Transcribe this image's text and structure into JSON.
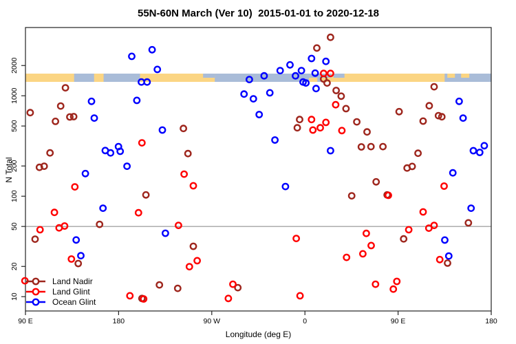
{
  "chart_data": {
    "type": "scatter",
    "title": "55N-60N March (Ver 10)  2015-01-01 to 2020-12-18",
    "xlabel": "Longitude (deg E)",
    "ylabel": "N Total",
    "x_axis": {
      "note": "longitude axis starting at 90E wrapping eastward to 180, axis units deg 90..540",
      "range": [
        90,
        540
      ],
      "ticks": [
        {
          "value": 90,
          "label": "90 E"
        },
        {
          "value": 180,
          "label": "180"
        },
        {
          "value": 270,
          "label": "90 W"
        },
        {
          "value": 360,
          "label": "0"
        },
        {
          "value": 450,
          "label": "90 E"
        },
        {
          "value": 540,
          "label": "180"
        }
      ]
    },
    "y_axis": {
      "scale": "log",
      "range": [
        8.5,
        4600
      ],
      "ticks": [
        {
          "value": 10,
          "label": "10"
        },
        {
          "value": 20,
          "label": "20"
        },
        {
          "value": 50,
          "label": "50"
        },
        {
          "value": 100,
          "label": "100"
        },
        {
          "value": 200,
          "label": "200"
        },
        {
          "value": 500,
          "label": "500"
        },
        {
          "value": 1000,
          "label": "1000"
        },
        {
          "value": 2000,
          "label": "2000"
        }
      ]
    },
    "reference_line": {
      "y": 50,
      "color": "#808080"
    },
    "map_band": {
      "description": "55N-60N latitude strip map drawn across plot near N=1700",
      "ocean_color": "#A9BCD8",
      "land_color": "#FBD583",
      "extent": [
        90,
        540
      ],
      "land_segments": [
        {
          "from": 90,
          "to": 137
        },
        {
          "from": 156.3,
          "to": 165.5
        },
        {
          "from": 200.7,
          "to": 272.9
        },
        {
          "from": 385.6,
          "to": 495.0
        }
      ],
      "patches": [
        {
          "from": 261.6,
          "to": 272.9,
          "color": "ocean",
          "half": "top"
        },
        {
          "from": 364.0,
          "to": 372.0,
          "color": "land",
          "half": "bottom"
        },
        {
          "from": 376.0,
          "to": 385.6,
          "color": "land",
          "half": "bottom"
        },
        {
          "from": 387.6,
          "to": 398.2,
          "color": "ocean",
          "half": "top"
        },
        {
          "from": 497.6,
          "to": 504.9,
          "color": "land",
          "half": "top"
        },
        {
          "from": 510.9,
          "to": 518.8,
          "color": "land",
          "half": "top"
        }
      ]
    },
    "legend": {
      "position": "bottom-left"
    },
    "series": [
      {
        "name": "Land Nadir",
        "color": "#9E261D",
        "points": [
          [
            128.6,
            1200
          ],
          [
            94.6,
            680
          ],
          [
            124,
            790
          ],
          [
            132.9,
            615
          ],
          [
            136.6,
            620
          ],
          [
            119,
            556
          ],
          [
            113.7,
            270
          ],
          [
            103.5,
            194
          ],
          [
            108.1,
            199
          ],
          [
            99.3,
            37.4
          ],
          [
            161.6,
            52.5
          ],
          [
            141,
            21.4
          ],
          [
            242.6,
            473
          ],
          [
            247,
            266
          ],
          [
            206.4,
            103
          ],
          [
            252.2,
            31.7
          ],
          [
            219.4,
            13.1
          ],
          [
            237.1,
            12.1
          ],
          [
            202.5,
            9.6
          ],
          [
            295.2,
            12.3
          ],
          [
            384.7,
            3820
          ],
          [
            371.5,
            2990
          ],
          [
            381.4,
            1340
          ],
          [
            378.1,
            1470
          ],
          [
            390.2,
            1130
          ],
          [
            395,
            990
          ],
          [
            399.7,
            745
          ],
          [
            354.9,
            580
          ],
          [
            352.6,
            480
          ],
          [
            410.1,
            550
          ],
          [
            420,
            437
          ],
          [
            414.5,
            310
          ],
          [
            423.8,
            312
          ],
          [
            435.4,
            312
          ],
          [
            428.8,
            139
          ],
          [
            405.2,
            101
          ],
          [
            439.4,
            103
          ],
          [
            484.8,
            1230
          ],
          [
            480.1,
            795
          ],
          [
            451,
            695
          ],
          [
            489,
            634
          ],
          [
            492.3,
            618
          ],
          [
            474.2,
            560
          ],
          [
            517.9,
            54.3
          ],
          [
            455.4,
            37.6
          ],
          [
            469.3,
            268
          ],
          [
            458.7,
            191
          ],
          [
            463.6,
            198
          ],
          [
            497.8,
            21.6
          ]
        ]
      },
      {
        "name": "Land Glint",
        "color": "#FF0000",
        "points": [
          [
            202.5,
            340
          ],
          [
            137.7,
            124
          ],
          [
            118,
            69
          ],
          [
            199.2,
            68.5
          ],
          [
            122.5,
            48.4
          ],
          [
            127.8,
            50.5
          ],
          [
            104.1,
            46.4
          ],
          [
            134.4,
            23.7
          ],
          [
            190.9,
            10.2
          ],
          [
            204.2,
            9.5
          ],
          [
            89.5,
            14.4
          ],
          [
            243.3,
            166
          ],
          [
            252.2,
            127
          ],
          [
            237.8,
            51.2
          ],
          [
            248.4,
            19.9
          ],
          [
            255.9,
            22.8
          ],
          [
            286,
            9.6
          ],
          [
            290.4,
            13.3
          ],
          [
            378.1,
            1670
          ],
          [
            384.7,
            1670
          ],
          [
            366.4,
            580
          ],
          [
            374.8,
            480
          ],
          [
            367.7,
            456
          ],
          [
            380.3,
            543
          ],
          [
            395.7,
            450
          ],
          [
            389.7,
            815
          ],
          [
            351.6,
            38
          ],
          [
            419.3,
            42.7
          ],
          [
            424,
            32.3
          ],
          [
            416,
            26.7
          ],
          [
            400.2,
            24.6
          ],
          [
            428.2,
            13.3
          ],
          [
            355.3,
            10.2
          ],
          [
            494.5,
            126
          ],
          [
            440.6,
            102
          ],
          [
            474.2,
            69.8
          ],
          [
            479.7,
            48.1
          ],
          [
            484.8,
            51.2
          ],
          [
            460.3,
            46.4
          ],
          [
            490.3,
            23.4
          ],
          [
            448.8,
            14.2
          ],
          [
            445.4,
            11.9
          ]
        ]
      },
      {
        "name": "Ocean Glint",
        "color": "#0000FF",
        "points": [
          [
            192.7,
            2470
          ],
          [
            202,
            1370
          ],
          [
            207.5,
            1370
          ],
          [
            217.4,
            1830
          ],
          [
            212.4,
            2870
          ],
          [
            153.8,
            880
          ],
          [
            197.6,
            900
          ],
          [
            156.5,
            600
          ],
          [
            167.1,
            285
          ],
          [
            172.2,
            270
          ],
          [
            181.5,
            280
          ],
          [
            179.9,
            312
          ],
          [
            188.1,
            199
          ],
          [
            147.9,
            168
          ],
          [
            164.9,
            76
          ],
          [
            139,
            36.7
          ],
          [
            143.5,
            25.6
          ],
          [
            225.2,
            42.8
          ],
          [
            306.3,
            1450
          ],
          [
            320.6,
            1580
          ],
          [
            301.2,
            1040
          ],
          [
            310.2,
            933
          ],
          [
            315.8,
            650
          ],
          [
            222.3,
            456
          ],
          [
            345.6,
            2030
          ],
          [
            366.4,
            2350
          ],
          [
            380.3,
            2200
          ],
          [
            336.1,
            1780
          ],
          [
            356.6,
            1780
          ],
          [
            350.9,
            1580
          ],
          [
            369.9,
            1680
          ],
          [
            358.2,
            1370
          ],
          [
            360.9,
            1340
          ],
          [
            370.8,
            1180
          ],
          [
            326.1,
            1070
          ],
          [
            331,
            363
          ],
          [
            384.7,
            284
          ],
          [
            341.2,
            125
          ],
          [
            509,
            880
          ],
          [
            512.8,
            600
          ],
          [
            522.7,
            284
          ],
          [
            528.9,
            273
          ],
          [
            533.3,
            318
          ],
          [
            502.9,
            171
          ],
          [
            520.5,
            76
          ],
          [
            495.1,
            36.6
          ],
          [
            499,
            25.4
          ]
        ]
      }
    ]
  },
  "layout_colors": {
    "axis": "#222222",
    "tick_text": "#000000",
    "background": "#ffffff"
  }
}
